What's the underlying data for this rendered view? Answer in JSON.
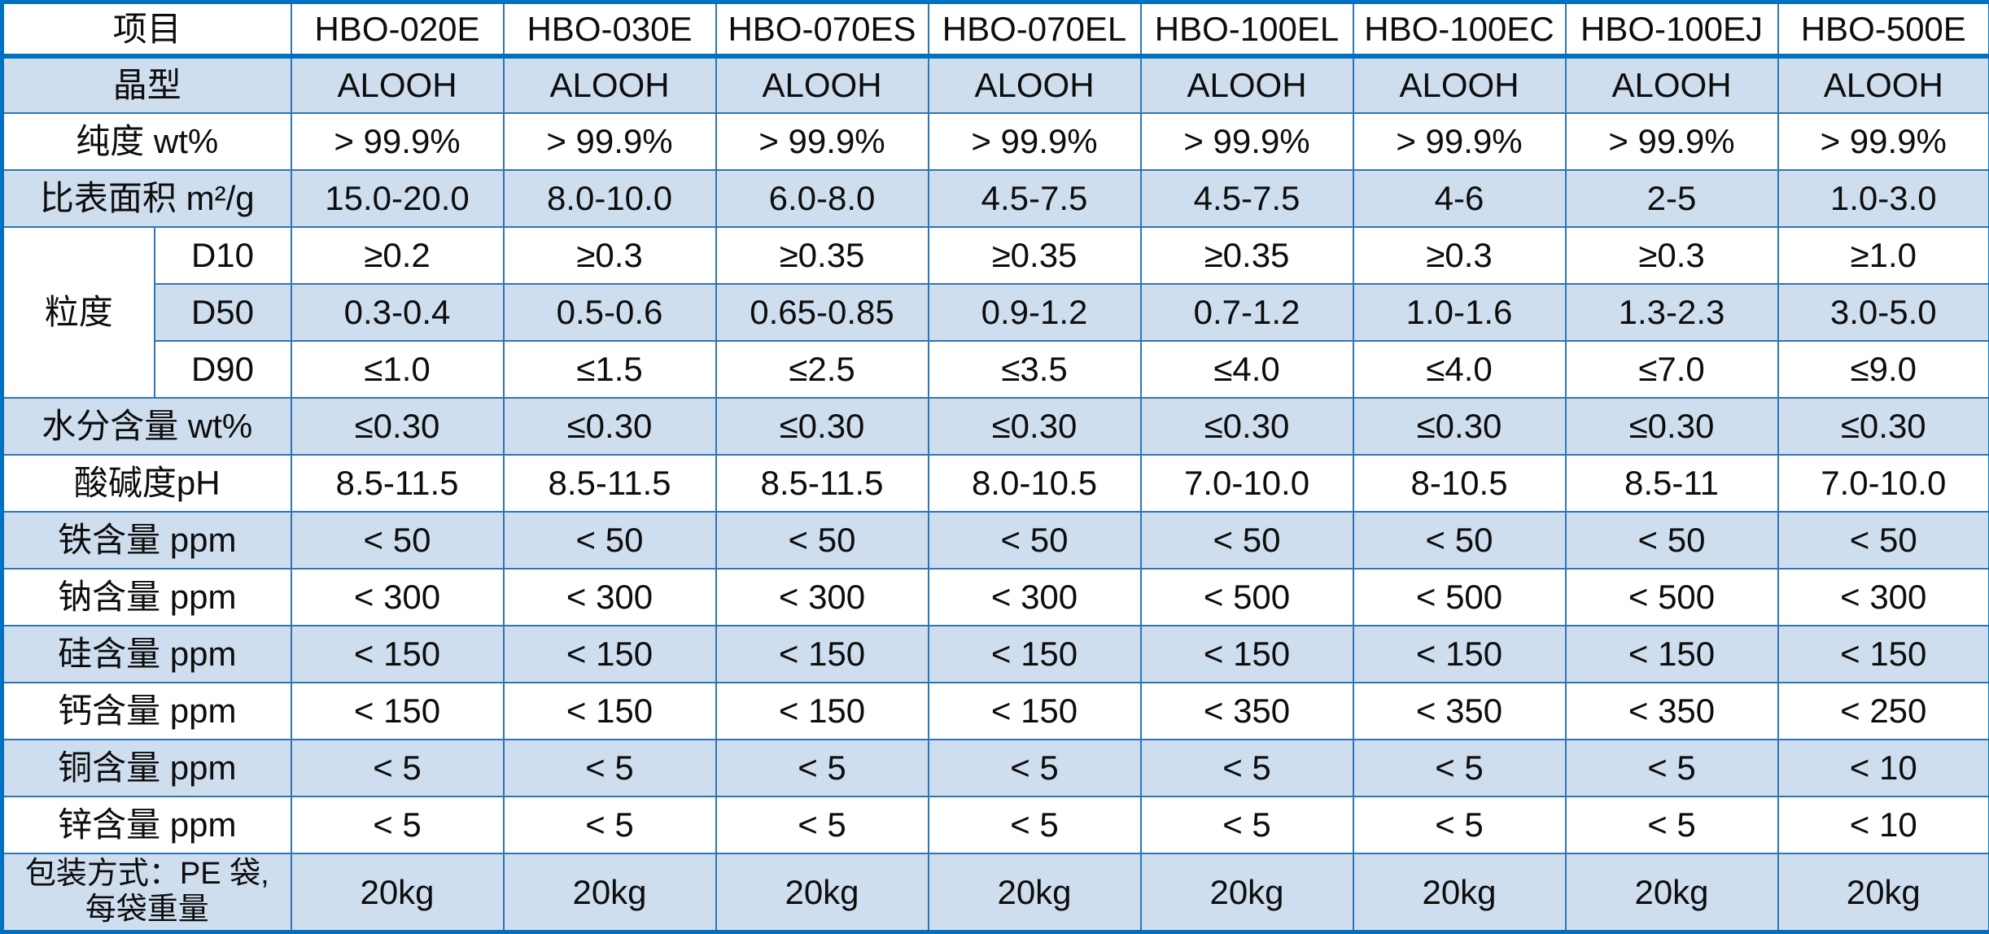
{
  "colors": {
    "grid_blue": "#2e75b6",
    "thick_blue": "#0070c0",
    "row_fill_blue": "#cfdeef",
    "text": "#0d0d0d"
  },
  "h": {
    "item": "项目",
    "cols": [
      "HBO-020E",
      "HBO-030E",
      "HBO-070ES",
      "HBO-070EL",
      "HBO-100EL",
      "HBO-100EC",
      "HBO-100EJ",
      "HBO-500E"
    ]
  },
  "rows": {
    "crystal": {
      "label": "晶型",
      "v": [
        "ALOOH",
        "ALOOH",
        "ALOOH",
        "ALOOH",
        "ALOOH",
        "ALOOH",
        "ALOOH",
        "ALOOH"
      ]
    },
    "purity": {
      "label": "纯度 wt%",
      "v": [
        "> 99.9%",
        "> 99.9%",
        "> 99.9%",
        "> 99.9%",
        "> 99.9%",
        "> 99.9%",
        "> 99.9%",
        "> 99.9%"
      ]
    },
    "ssa": {
      "label": "比表面积 m²/g",
      "v": [
        "15.0-20.0",
        "8.0-10.0",
        "6.0-8.0",
        "4.5-7.5",
        "4.5-7.5",
        "4-6",
        "2-5",
        "1.0-3.0"
      ]
    },
    "psd": {
      "group": "粒度",
      "d10": {
        "label": "D10",
        "v": [
          "≥0.2",
          "≥0.3",
          "≥0.35",
          "≥0.35",
          "≥0.35",
          "≥0.3",
          "≥0.3",
          "≥1.0"
        ]
      },
      "d50": {
        "label": "D50",
        "v": [
          "0.3-0.4",
          "0.5-0.6",
          "0.65-0.85",
          "0.9-1.2",
          "0.7-1.2",
          "1.0-1.6",
          "1.3-2.3",
          "3.0-5.0"
        ]
      },
      "d90": {
        "label": "D90",
        "v": [
          "≤1.0",
          "≤1.5",
          "≤2.5",
          "≤3.5",
          "≤4.0",
          "≤4.0",
          "≤7.0",
          "≤9.0"
        ]
      }
    },
    "moisture": {
      "label": "水分含量 wt%",
      "v": [
        "≤0.30",
        "≤0.30",
        "≤0.30",
        "≤0.30",
        "≤0.30",
        "≤0.30",
        "≤0.30",
        "≤0.30"
      ]
    },
    "ph": {
      "label": "酸碱度pH",
      "v": [
        "8.5-11.5",
        "8.5-11.5",
        "8.5-11.5",
        "8.0-10.5",
        "7.0-10.0",
        "8-10.5",
        "8.5-11",
        "7.0-10.0"
      ]
    },
    "fe": {
      "label": "铁含量 ppm",
      "v": [
        "< 50",
        "< 50",
        "< 50",
        "< 50",
        "< 50",
        "< 50",
        "< 50",
        "< 50"
      ]
    },
    "na": {
      "label": "钠含量 ppm",
      "v": [
        "< 300",
        "< 300",
        "< 300",
        "< 300",
        "< 500",
        "< 500",
        "< 500",
        "< 300"
      ]
    },
    "si": {
      "label": "硅含量 ppm",
      "v": [
        "< 150",
        "< 150",
        "< 150",
        "< 150",
        "< 150",
        "< 150",
        "< 150",
        "< 150"
      ]
    },
    "ca": {
      "label": "钙含量 ppm",
      "v": [
        "< 150",
        "< 150",
        "< 150",
        "< 150",
        "< 350",
        "< 350",
        "< 350",
        "< 250"
      ]
    },
    "cu": {
      "label": "铜含量 ppm",
      "v": [
        "< 5",
        "< 5",
        "< 5",
        "< 5",
        "< 5",
        "< 5",
        "< 5",
        "< 10"
      ]
    },
    "zn": {
      "label": "锌含量 ppm",
      "v": [
        "< 5",
        "< 5",
        "< 5",
        "< 5",
        "< 5",
        "< 5",
        "< 5",
        "< 10"
      ]
    },
    "pack": {
      "label": "包装方式：PE 袋,\n每袋重量",
      "v": [
        "20kg",
        "20kg",
        "20kg",
        "20kg",
        "20kg",
        "20kg",
        "20kg",
        "20kg"
      ]
    }
  }
}
